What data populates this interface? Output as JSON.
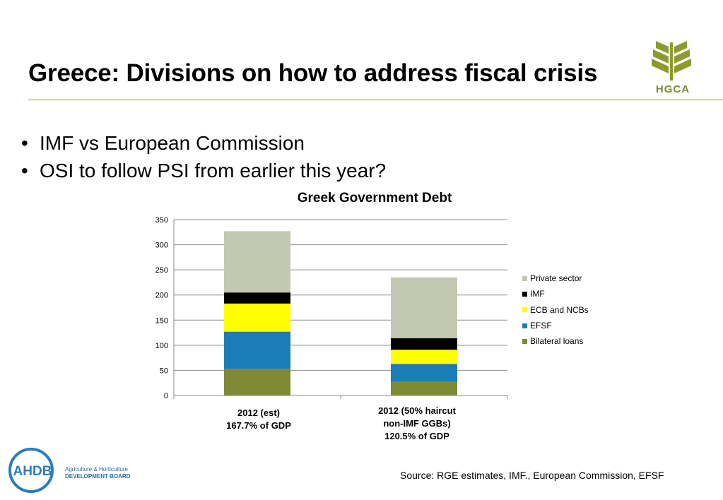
{
  "slide": {
    "title": "Greece: Divisions on how to address fiscal crisis",
    "bullets": [
      "IMF vs European Commission",
      "OSI to follow PSI from earlier this year?"
    ],
    "source": "Source: RGE estimates, IMF., European Commission, EFSF"
  },
  "logos": {
    "hgca": "HGCA",
    "ahdb": "AHDB",
    "ahdb_line1": "Agriculture & Horticulture",
    "ahdb_line2": "DEVELOPMENT BOARD"
  },
  "chart_data": {
    "type": "bar",
    "stacked": true,
    "title": "Greek Government Debt",
    "categories": [
      [
        "2012 (est)",
        "167.7% of GDP"
      ],
      [
        "2012 (50% haircut",
        "non-IMF GGBs)",
        "120.5% of GDP"
      ]
    ],
    "series": [
      {
        "name": "Bilateral loans",
        "color": "#7f8a35",
        "values": [
          53,
          27
        ]
      },
      {
        "name": "EFSF",
        "color": "#1b7db5",
        "values": [
          74,
          36
        ]
      },
      {
        "name": "ECB and NCBs",
        "color": "#ffff00",
        "values": [
          56,
          28
        ]
      },
      {
        "name": "IMF",
        "color": "#000000",
        "values": [
          22,
          23
        ]
      },
      {
        "name": "Private sector",
        "color": "#c3c8b1",
        "values": [
          122,
          121
        ]
      }
    ],
    "ylim": [
      0,
      350
    ],
    "yticks": [
      0,
      50,
      100,
      150,
      200,
      250,
      300,
      350
    ],
    "grid": true,
    "legend": "right"
  }
}
